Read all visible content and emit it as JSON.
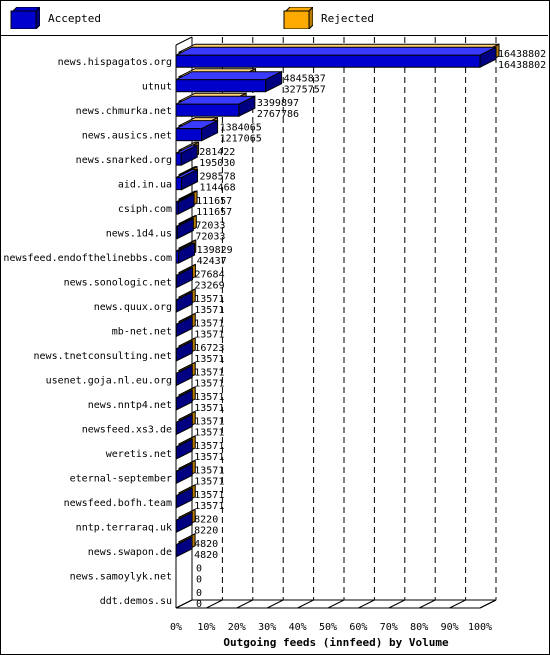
{
  "legend": {
    "accepted_label": "Accepted",
    "rejected_label": "Rejected"
  },
  "colors": {
    "accepted": "#0000cc",
    "rejected": "#ffaa00"
  },
  "chart_data": {
    "type": "bar",
    "orientation": "horizontal",
    "xlabel": "Outgoing feeds (innfeed) by Volume",
    "xlim": [
      0,
      100
    ],
    "x_ticks": [
      "0%",
      "10%",
      "20%",
      "30%",
      "40%",
      "50%",
      "60%",
      "70%",
      "80%",
      "90%",
      "100%"
    ],
    "grid": true,
    "legend_position": "top",
    "categories": [
      "news.hispagatos.org",
      "utnut",
      "news.chmurka.net",
      "news.ausics.net",
      "news.snarked.org",
      "aid.in.ua",
      "csiph.com",
      "news.1d4.us",
      "newsfeed.endofthelinebbs.com",
      "news.sonologic.net",
      "news.quux.org",
      "mb-net.net",
      "news.tnetconsulting.net",
      "usenet.goja.nl.eu.org",
      "news.nntp4.net",
      "newsfeed.xs3.de",
      "weretis.net",
      "eternal-september",
      "newsfeed.bofh.team",
      "nntp.terraraq.uk",
      "news.swapon.de",
      "news.samoylyk.net",
      "ddt.demos.su"
    ],
    "series": [
      {
        "name": "Accepted",
        "values": [
          16438802,
          4845837,
          3399897,
          1384065,
          281422,
          298578,
          111657,
          72033,
          139829,
          27684,
          13571,
          13571,
          16723,
          13571,
          13571,
          13571,
          13571,
          13571,
          13571,
          8220,
          4820,
          0,
          0
        ]
      },
      {
        "name": "Rejected",
        "values": [
          16438802,
          3275757,
          2767786,
          1217065,
          195030,
          114468,
          111657,
          72033,
          42437,
          23269,
          13571,
          13571,
          13571,
          13571,
          13571,
          13571,
          13571,
          13571,
          13571,
          8220,
          4820,
          0,
          0
        ]
      }
    ]
  }
}
